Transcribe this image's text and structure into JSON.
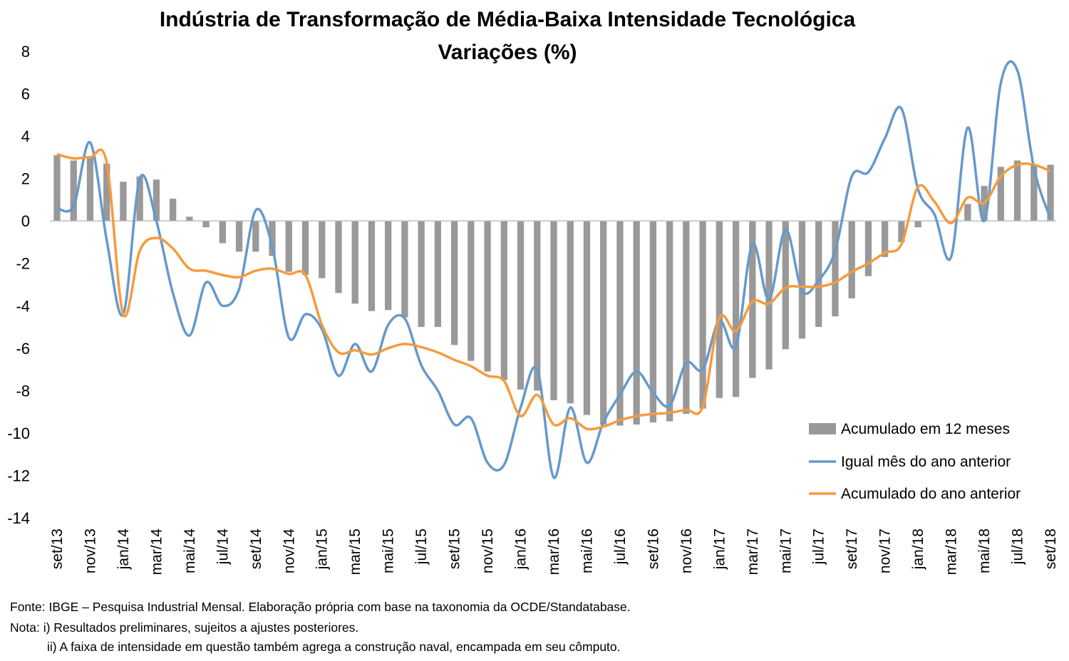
{
  "chart_data": {
    "type": "bar",
    "title": "Indústria de Transformação de Média-Baixa Intensidade Tecnológica",
    "subtitle": "Variações (%)",
    "ylim": [
      -14,
      8
    ],
    "yticks": [
      8,
      6,
      4,
      2,
      0,
      -2,
      -4,
      -6,
      -8,
      -10,
      -12,
      -14
    ],
    "grid": false,
    "legend_position": "bottom-right",
    "categories": [
      "set/13",
      "out/13",
      "nov/13",
      "dez/13",
      "jan/14",
      "fev/14",
      "mar/14",
      "abr/14",
      "mai/14",
      "jun/14",
      "jul/14",
      "ago/14",
      "set/14",
      "out/14",
      "nov/14",
      "dez/14",
      "jan/15",
      "fev/15",
      "mar/15",
      "abr/15",
      "mai/15",
      "jun/15",
      "jul/15",
      "ago/15",
      "set/15",
      "out/15",
      "nov/15",
      "dez/15",
      "jan/16",
      "fev/16",
      "mar/16",
      "abr/16",
      "mai/16",
      "jun/16",
      "jul/16",
      "ago/16",
      "set/16",
      "out/16",
      "nov/16",
      "dez/16",
      "jan/17",
      "fev/17",
      "mar/17",
      "abr/17",
      "mai/17",
      "jun/17",
      "jul/17",
      "ago/17",
      "set/17",
      "out/17",
      "nov/17",
      "dez/17",
      "jan/18",
      "fev/18",
      "mar/18",
      "abr/18",
      "mai/18",
      "jun/18",
      "jul/18",
      "ago/18",
      "set/18"
    ],
    "tick_labels": [
      "set/13",
      "nov/13",
      "jan/14",
      "mar/14",
      "mai/14",
      "jul/14",
      "set/14",
      "nov/14",
      "jan/15",
      "mar/15",
      "mai/15",
      "jul/15",
      "set/15",
      "nov/15",
      "jan/16",
      "mar/16",
      "mai/16",
      "jul/16",
      "set/16",
      "nov/16",
      "jan/17",
      "mar/17",
      "mai/17",
      "jul/17",
      "set/17",
      "nov/17",
      "jan/18",
      "mar/18",
      "mai/18",
      "jul/18",
      "set/18"
    ],
    "series": [
      {
        "name": "Acumulado em 12 meses",
        "type": "bar",
        "color": "#999999",
        "values": [
          3.1,
          2.85,
          3.0,
          2.7,
          1.85,
          2.1,
          1.95,
          1.05,
          0.2,
          -0.3,
          -1.05,
          -1.45,
          -1.45,
          -1.65,
          -2.4,
          -2.55,
          -2.7,
          -3.4,
          -3.9,
          -4.25,
          -4.2,
          -4.55,
          -5.0,
          -5.0,
          -5.85,
          -6.6,
          -7.1,
          -7.5,
          -7.95,
          -8.0,
          -8.45,
          -8.6,
          -9.15,
          -9.6,
          -9.65,
          -9.6,
          -9.5,
          -9.45,
          -9.1,
          -8.85,
          -8.35,
          -8.3,
          -7.4,
          -7.0,
          -6.05,
          -5.55,
          -5.0,
          -4.5,
          -3.65,
          -2.6,
          -1.7,
          -1.0,
          -0.3,
          0.0,
          0.0,
          0.8,
          1.65,
          2.55,
          2.85,
          2.65,
          2.65
        ]
      },
      {
        "name": "Igual mês do ano anterior",
        "type": "line",
        "color": "#6699cc",
        "values": [
          0.6,
          0.7,
          3.7,
          -0.9,
          -4.4,
          2.0,
          0.0,
          -3.4,
          -5.4,
          -2.9,
          -4.0,
          -3.2,
          0.5,
          -1.2,
          -5.5,
          -4.4,
          -5.1,
          -7.3,
          -5.8,
          -7.1,
          -4.9,
          -4.6,
          -6.8,
          -8.0,
          -9.6,
          -9.3,
          -11.4,
          -11.5,
          -8.8,
          -7.0,
          -12.1,
          -8.8,
          -11.4,
          -9.5,
          -8.2,
          -7.1,
          -8.1,
          -8.7,
          -6.7,
          -7.0,
          -4.7,
          -5.9,
          -1.1,
          -3.7,
          -0.4,
          -3.3,
          -2.8,
          -1.4,
          2.1,
          2.3,
          3.9,
          5.3,
          1.5,
          0.3,
          -1.7,
          4.4,
          0.0,
          6.5,
          7.1,
          2.5,
          0.1
        ]
      },
      {
        "name": "Acumulado do ano anterior",
        "type": "line",
        "color": "#f79a3e",
        "values": [
          3.15,
          2.95,
          3.0,
          2.75,
          -4.4,
          -1.4,
          -0.8,
          -1.3,
          -2.25,
          -2.35,
          -2.55,
          -2.65,
          -2.35,
          -2.25,
          -2.5,
          -2.55,
          -4.9,
          -6.2,
          -6.1,
          -6.3,
          -6.0,
          -5.8,
          -5.95,
          -6.2,
          -6.55,
          -6.85,
          -7.3,
          -7.55,
          -9.2,
          -8.2,
          -9.6,
          -9.3,
          -9.8,
          -9.7,
          -9.4,
          -9.2,
          -9.1,
          -9.05,
          -8.9,
          -8.75,
          -4.6,
          -5.2,
          -3.8,
          -3.9,
          -3.15,
          -3.1,
          -3.1,
          -2.9,
          -2.4,
          -2.0,
          -1.5,
          -1.1,
          1.6,
          0.9,
          -0.1,
          1.1,
          0.85,
          2.1,
          2.65,
          2.65,
          2.35
        ]
      }
    ]
  },
  "footnotes": {
    "source": "Fonte: IBGE – Pesquisa Industrial Mensal. Elaboração própria com base na taxonomia da OCDE/Standatabase.",
    "note1": "Nota: i) Resultados preliminares, sujeitos a ajustes posteriores.",
    "note2": "ii) A faixa de intensidade em questão também agrega a construção naval, encampada em seu cômputo."
  }
}
